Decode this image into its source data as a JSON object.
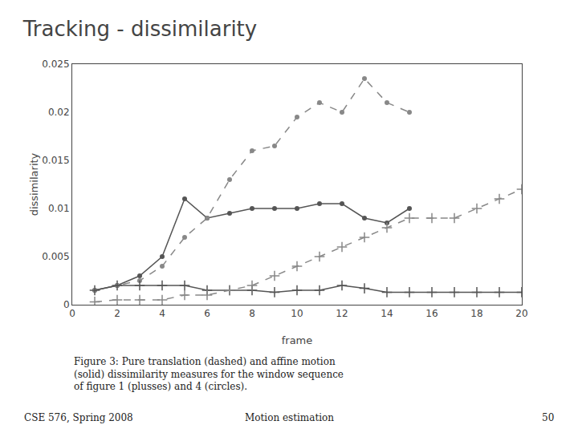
{
  "chart_data": {
    "type": "line",
    "title": "Tracking - dissimilarity",
    "x_label": "frame",
    "y_label": "dissimilarity",
    "xlim": [
      0,
      20
    ],
    "ylim": [
      0,
      0.025
    ],
    "xticks": [
      0,
      2,
      4,
      6,
      8,
      10,
      12,
      14,
      16,
      18,
      20
    ],
    "yticks": [
      0,
      0.005,
      0.01,
      0.015,
      0.02,
      0.025
    ],
    "grid": false,
    "series": [
      {
        "color": "#555555",
        "marker": "circle",
        "line_style": "solid",
        "x": [
          1,
          2,
          3,
          4,
          5,
          6,
          7,
          8,
          9,
          10,
          11,
          12,
          13,
          14,
          15
        ],
        "values": [
          0.0015,
          0.002,
          0.003,
          0.005,
          0.011,
          0.009,
          0.0095,
          0.01,
          0.01,
          0.01,
          0.0105,
          0.0105,
          0.009,
          0.0085,
          0.01
        ]
      },
      {
        "color": "#888888",
        "marker": "circle",
        "line_style": "dashed",
        "x": [
          1,
          2,
          3,
          4,
          5,
          6,
          7,
          8,
          9,
          10,
          11,
          12,
          13,
          14,
          15
        ],
        "values": [
          0.0015,
          0.002,
          0.0025,
          0.004,
          0.007,
          0.009,
          0.013,
          0.016,
          0.0165,
          0.0195,
          0.021,
          0.02,
          0.0235,
          0.021,
          0.02
        ]
      },
      {
        "color": "#555555",
        "marker": "plus",
        "line_style": "solid",
        "x": [
          1,
          2,
          3,
          4,
          5,
          6,
          7,
          8,
          9,
          10,
          11,
          12,
          13,
          14,
          15,
          16,
          17,
          18,
          19,
          20
        ],
        "values": [
          0.0015,
          0.002,
          0.002,
          0.002,
          0.002,
          0.0015,
          0.0015,
          0.0015,
          0.0013,
          0.0015,
          0.0015,
          0.002,
          0.0017,
          0.0013,
          0.0013,
          0.0013,
          0.0013,
          0.0013,
          0.0013,
          0.0013
        ]
      },
      {
        "color": "#888888",
        "marker": "plus",
        "line_style": "dashed",
        "x": [
          1,
          2,
          3,
          4,
          5,
          6,
          7,
          8,
          9,
          10,
          11,
          12,
          13,
          14,
          15,
          16,
          17,
          18,
          19,
          20
        ],
        "values": [
          0.0003,
          0.0005,
          0.0005,
          0.0005,
          0.001,
          0.001,
          0.0015,
          0.002,
          0.003,
          0.004,
          0.005,
          0.006,
          0.007,
          0.008,
          0.009,
          0.009,
          0.009,
          0.01,
          0.011,
          0.012
        ]
      }
    ],
    "annotations": [
      "Figure 3: Pure translation (dashed) and affine motion",
      "(solid) dissimilarity measures for the window sequence",
      "of figure 1 (plusses) and 4 (circles).",
      "CSE 576, Spring 2008",
      "Motion estimation",
      "50"
    ]
  }
}
